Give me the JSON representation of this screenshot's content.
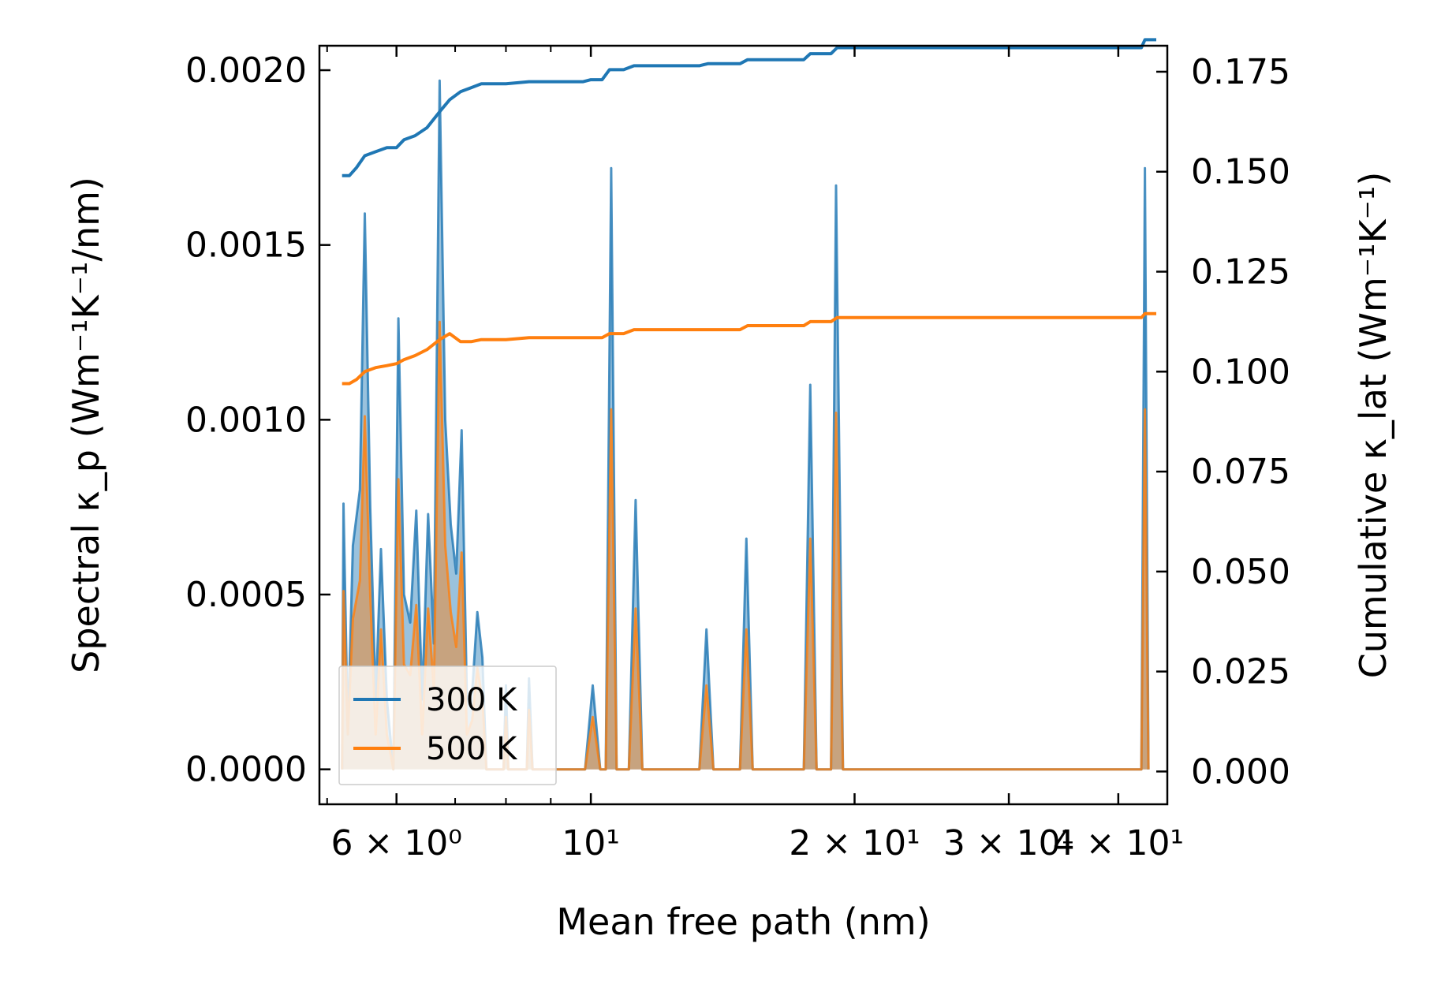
{
  "chart_data": {
    "type": "line",
    "title": "",
    "xlabel": "Mean free path (nm)",
    "ylabel_left": "Spectral κ_p (Wm⁻¹K⁻¹/nm)",
    "ylabel_right": "Cumulative κ_lat (Wm⁻¹K⁻¹)",
    "xscale": "log",
    "xlim": [
      4.9,
      45.5
    ],
    "ylim_left": [
      -0.0001,
      0.00207
    ],
    "ylim_right": [
      -0.0082,
      0.1815
    ],
    "x_ticks": [
      {
        "value": 6,
        "label": "6 × 10⁰"
      },
      {
        "value": 10,
        "label": "10¹"
      },
      {
        "value": 20,
        "label": "2 × 10¹"
      },
      {
        "value": 30,
        "label": "3 × 10¹"
      },
      {
        "value": 40,
        "label": "4 × 10¹"
      }
    ],
    "y_ticks_left": [
      "0.0000",
      "0.0005",
      "0.0010",
      "0.0015",
      "0.0020"
    ],
    "y_ticks_right": [
      "0.000",
      "0.025",
      "0.050",
      "0.075",
      "0.100",
      "0.125",
      "0.150",
      "0.175"
    ],
    "legend": {
      "position": "lower-left",
      "entries": [
        "300 K",
        "500 K"
      ]
    },
    "colors": {
      "300 K": "#1f77b4",
      "500 K": "#ff7f0e"
    },
    "spectral_series": [
      {
        "name": "300 K",
        "axis": "left",
        "points": [
          [
            5.2,
            0
          ],
          [
            5.22,
            0.00076
          ],
          [
            5.28,
            0.0001
          ],
          [
            5.35,
            0.00064
          ],
          [
            5.45,
            0.0008
          ],
          [
            5.52,
            0.00159
          ],
          [
            5.6,
            0.00075
          ],
          [
            5.68,
            0.0002
          ],
          [
            5.76,
            0.00063
          ],
          [
            5.85,
            0.0002
          ],
          [
            5.95,
            0.0
          ],
          [
            6.03,
            0.00129
          ],
          [
            6.12,
            0.0005
          ],
          [
            6.22,
            0.00042
          ],
          [
            6.32,
            0.00074
          ],
          [
            6.42,
            0.0002
          ],
          [
            6.52,
            0.00073
          ],
          [
            6.62,
            0.00036
          ],
          [
            6.72,
            0.00197
          ],
          [
            6.82,
            0.001
          ],
          [
            6.92,
            0.0007
          ],
          [
            7.02,
            0.00056
          ],
          [
            7.12,
            0.00097
          ],
          [
            7.22,
            0.0002
          ],
          [
            7.32,
            0.00022
          ],
          [
            7.42,
            0.00045
          ],
          [
            7.52,
            0.00032
          ],
          [
            7.6,
            0
          ],
          [
            7.95,
            0
          ],
          [
            8.0,
            0.00024
          ],
          [
            8.05,
            0
          ],
          [
            8.45,
            0
          ],
          [
            8.5,
            0.00026
          ],
          [
            8.58,
            0
          ],
          [
            9.85,
            0
          ],
          [
            10.05,
            0.00024
          ],
          [
            10.25,
            0
          ],
          [
            10.4,
            0
          ],
          [
            10.55,
            0.00172
          ],
          [
            10.7,
            0
          ],
          [
            11.05,
            0
          ],
          [
            11.25,
            0.00077
          ],
          [
            11.45,
            0
          ],
          [
            13.3,
            0
          ],
          [
            13.55,
            0.0004
          ],
          [
            13.8,
            0
          ],
          [
            14.8,
            0
          ],
          [
            15.05,
            0.00066
          ],
          [
            15.3,
            0
          ],
          [
            17.5,
            0
          ],
          [
            17.8,
            0.0011
          ],
          [
            18.1,
            0
          ],
          [
            18.8,
            0
          ],
          [
            19.05,
            0.00167
          ],
          [
            19.4,
            0
          ],
          [
            42.5,
            0
          ],
          [
            42.9,
            0.00172
          ],
          [
            43.3,
            0
          ]
        ]
      },
      {
        "name": "500 K",
        "axis": "left",
        "points": [
          [
            5.2,
            0
          ],
          [
            5.22,
            0.00051
          ],
          [
            5.28,
            0.0001
          ],
          [
            5.35,
            0.00043
          ],
          [
            5.45,
            0.00054
          ],
          [
            5.52,
            0.00101
          ],
          [
            5.6,
            0.0005
          ],
          [
            5.68,
            0.0001
          ],
          [
            5.76,
            0.0004
          ],
          [
            5.85,
            0.0001
          ],
          [
            5.95,
            0.0
          ],
          [
            6.03,
            0.00083
          ],
          [
            6.12,
            0.0003
          ],
          [
            6.22,
            0.00027
          ],
          [
            6.32,
            0.00047
          ],
          [
            6.42,
            0.0001
          ],
          [
            6.52,
            0.00046
          ],
          [
            6.62,
            0.00023
          ],
          [
            6.72,
            0.00128
          ],
          [
            6.82,
            0.00064
          ],
          [
            6.92,
            0.00045
          ],
          [
            7.02,
            0.00035
          ],
          [
            7.12,
            0.00062
          ],
          [
            7.22,
            0.0001
          ],
          [
            7.32,
            0.00014
          ],
          [
            7.42,
            0.00029
          ],
          [
            7.52,
            0.0002
          ],
          [
            7.6,
            0
          ],
          [
            7.95,
            0
          ],
          [
            8.0,
            0.00015
          ],
          [
            8.05,
            0
          ],
          [
            8.45,
            0
          ],
          [
            8.5,
            0.00017
          ],
          [
            8.58,
            0
          ],
          [
            9.85,
            0
          ],
          [
            10.05,
            0.00015
          ],
          [
            10.25,
            0
          ],
          [
            10.4,
            0
          ],
          [
            10.55,
            0.00103
          ],
          [
            10.7,
            0
          ],
          [
            11.05,
            0
          ],
          [
            11.25,
            0.00046
          ],
          [
            11.45,
            0
          ],
          [
            13.3,
            0
          ],
          [
            13.55,
            0.00024
          ],
          [
            13.8,
            0
          ],
          [
            14.8,
            0
          ],
          [
            15.05,
            0.0004
          ],
          [
            15.3,
            0
          ],
          [
            17.5,
            0
          ],
          [
            17.8,
            0.00066
          ],
          [
            18.1,
            0
          ],
          [
            18.8,
            0
          ],
          [
            19.05,
            0.00102
          ],
          [
            19.4,
            0
          ],
          [
            42.5,
            0
          ],
          [
            42.9,
            0.00103
          ],
          [
            43.3,
            0
          ]
        ]
      }
    ],
    "cumulative_series": [
      {
        "name": "300 K",
        "axis": "right",
        "points": [
          [
            5.2,
            0.149
          ],
          [
            5.3,
            0.149
          ],
          [
            5.4,
            0.151
          ],
          [
            5.52,
            0.154
          ],
          [
            5.68,
            0.155
          ],
          [
            5.85,
            0.156
          ],
          [
            6.0,
            0.156
          ],
          [
            6.12,
            0.158
          ],
          [
            6.3,
            0.159
          ],
          [
            6.5,
            0.161
          ],
          [
            6.72,
            0.165
          ],
          [
            6.9,
            0.168
          ],
          [
            7.1,
            0.17
          ],
          [
            7.3,
            0.171
          ],
          [
            7.5,
            0.172
          ],
          [
            8.0,
            0.172
          ],
          [
            8.5,
            0.1725
          ],
          [
            9.8,
            0.1725
          ],
          [
            10.0,
            0.173
          ],
          [
            10.3,
            0.173
          ],
          [
            10.5,
            0.1755
          ],
          [
            10.9,
            0.1755
          ],
          [
            11.2,
            0.1765
          ],
          [
            13.3,
            0.1765
          ],
          [
            13.6,
            0.177
          ],
          [
            14.8,
            0.177
          ],
          [
            15.1,
            0.178
          ],
          [
            17.5,
            0.178
          ],
          [
            17.8,
            0.1795
          ],
          [
            18.8,
            0.1795
          ],
          [
            19.1,
            0.181
          ],
          [
            42.5,
            0.181
          ],
          [
            42.9,
            0.183
          ],
          [
            44.2,
            0.183
          ]
        ]
      },
      {
        "name": "500 K",
        "axis": "right",
        "points": [
          [
            5.2,
            0.097
          ],
          [
            5.3,
            0.097
          ],
          [
            5.4,
            0.098
          ],
          [
            5.52,
            0.1
          ],
          [
            5.68,
            0.101
          ],
          [
            5.85,
            0.1015
          ],
          [
            6.0,
            0.102
          ],
          [
            6.12,
            0.103
          ],
          [
            6.3,
            0.104
          ],
          [
            6.5,
            0.1055
          ],
          [
            6.72,
            0.108
          ],
          [
            6.9,
            0.1095
          ],
          [
            7.1,
            0.1075
          ],
          [
            7.3,
            0.1075
          ],
          [
            7.5,
            0.108
          ],
          [
            8.0,
            0.108
          ],
          [
            8.5,
            0.1085
          ],
          [
            9.8,
            0.1085
          ],
          [
            10.0,
            0.1085
          ],
          [
            10.3,
            0.1085
          ],
          [
            10.5,
            0.1095
          ],
          [
            10.9,
            0.1095
          ],
          [
            11.2,
            0.1105
          ],
          [
            13.3,
            0.1105
          ],
          [
            13.6,
            0.1105
          ],
          [
            14.8,
            0.1105
          ],
          [
            15.1,
            0.1115
          ],
          [
            17.5,
            0.1115
          ],
          [
            17.8,
            0.1125
          ],
          [
            18.8,
            0.1125
          ],
          [
            19.1,
            0.1135
          ],
          [
            42.5,
            0.1135
          ],
          [
            42.9,
            0.1145
          ],
          [
            44.2,
            0.1145
          ]
        ]
      }
    ]
  }
}
